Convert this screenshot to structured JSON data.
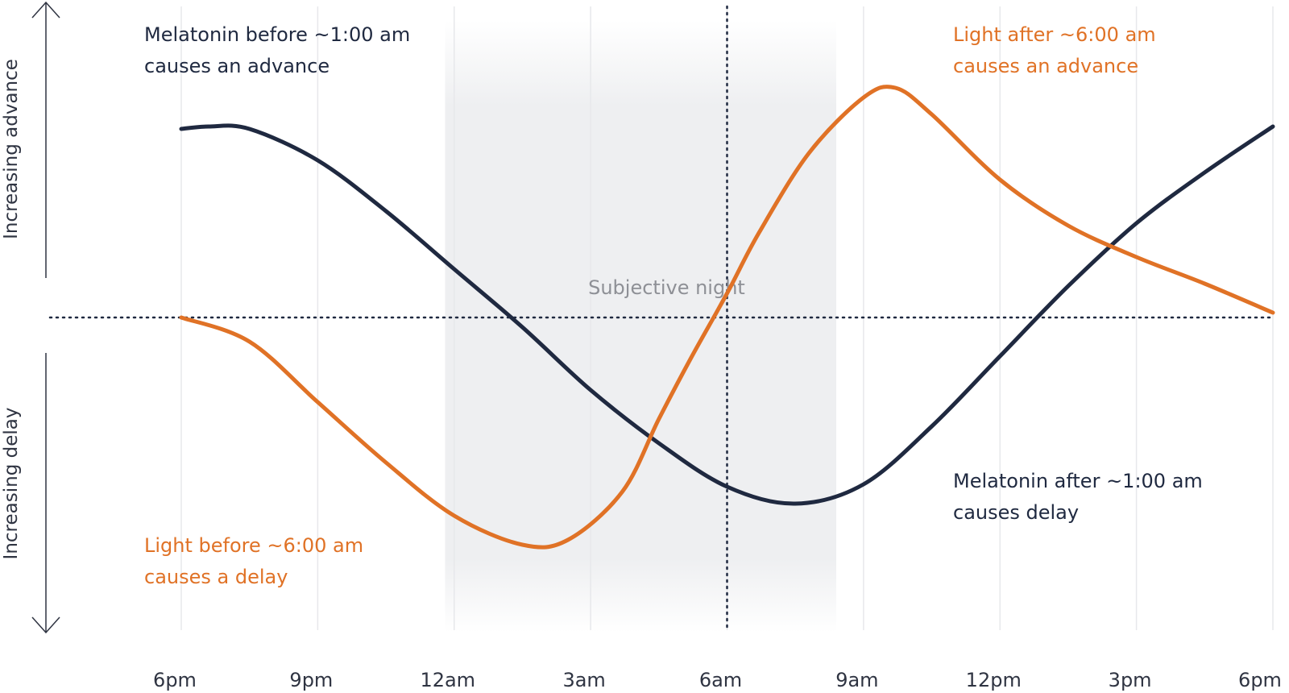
{
  "chart_data": {
    "type": "line",
    "title": "",
    "xlabel": "",
    "ylabel_top": "Increasing advance",
    "ylabel_bottom": "Increasing delay",
    "x_ticks": [
      "6pm",
      "9pm",
      "12am",
      "3am",
      "6am",
      "9am",
      "12pm",
      "3pm",
      "6pm"
    ],
    "x_unit": "hours after 6pm",
    "x_range": [
      0,
      24
    ],
    "y_range": [
      -1,
      1
    ],
    "grid": "vertical",
    "shaded_region": {
      "label": "Subjective night",
      "x_start": 5.8,
      "x_end": 14.4
    },
    "vertical_reference_line_x": 12,
    "horizontal_reference_line_y": 0,
    "series": [
      {
        "key": "melatonin",
        "color": "#1f2940",
        "x": [
          0,
          0.6,
          1.5,
          3,
          4.5,
          6,
          7.5,
          9,
          10.5,
          12,
          13.5,
          15,
          16.5,
          18,
          19.5,
          21,
          22.5,
          24
        ],
        "values": [
          0.78,
          0.79,
          0.78,
          0.65,
          0.44,
          0.2,
          -0.04,
          -0.3,
          -0.52,
          -0.7,
          -0.77,
          -0.69,
          -0.45,
          -0.16,
          0.13,
          0.39,
          0.6,
          0.79
        ]
      },
      {
        "key": "light",
        "color": "#e07226",
        "x": [
          0,
          1.5,
          3,
          4.5,
          6,
          7.5,
          8.5,
          9.7,
          10.5,
          11.2,
          12,
          12.7,
          13.8,
          15,
          15.7,
          16.5,
          18,
          19.5,
          21,
          22.5,
          24
        ],
        "values": [
          0,
          -0.1,
          -0.35,
          -0.6,
          -0.82,
          -0.94,
          -0.92,
          -0.72,
          -0.42,
          -0.17,
          0.1,
          0.35,
          0.68,
          0.91,
          0.95,
          0.84,
          0.57,
          0.38,
          0.25,
          0.14,
          0.02
        ]
      }
    ],
    "annotations": {
      "melatonin_advance": [
        "Melatonin before ~1:00 am",
        "causes an advance"
      ],
      "light_advance": [
        "Light after ~6:00 am",
        "causes an advance"
      ],
      "melatonin_delay": [
        "Melatonin after ~1:00 am",
        "causes delay"
      ],
      "light_delay": [
        "Light before ~6:00 am",
        "causes a delay"
      ]
    }
  }
}
